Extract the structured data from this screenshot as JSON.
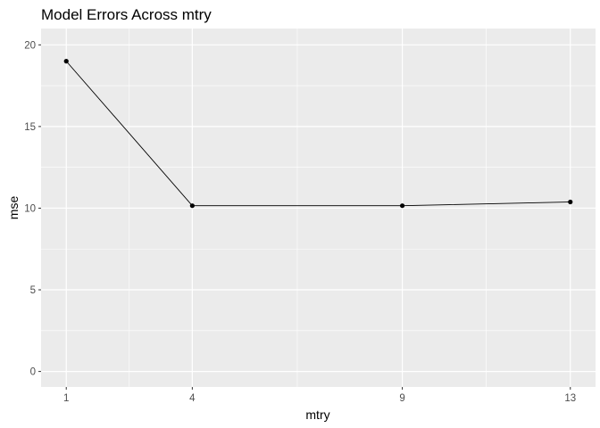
{
  "chart_data": {
    "type": "line",
    "title": "Model Errors Across mtry",
    "xlabel": "mtry",
    "ylabel": "mse",
    "x": [
      1,
      4,
      9,
      13
    ],
    "y": [
      19.0,
      10.15,
      10.15,
      10.38
    ],
    "xticks": [
      1,
      4,
      9,
      13
    ],
    "yticks": [
      0,
      5,
      10,
      15,
      20
    ],
    "xlim": [
      0.4,
      13.6
    ],
    "ylim": [
      -0.95,
      21.0
    ],
    "grid": true,
    "colors": {
      "panel_background": "#ebebeb",
      "grid": "#ffffff",
      "line": "#000000",
      "point": "#000000"
    }
  }
}
